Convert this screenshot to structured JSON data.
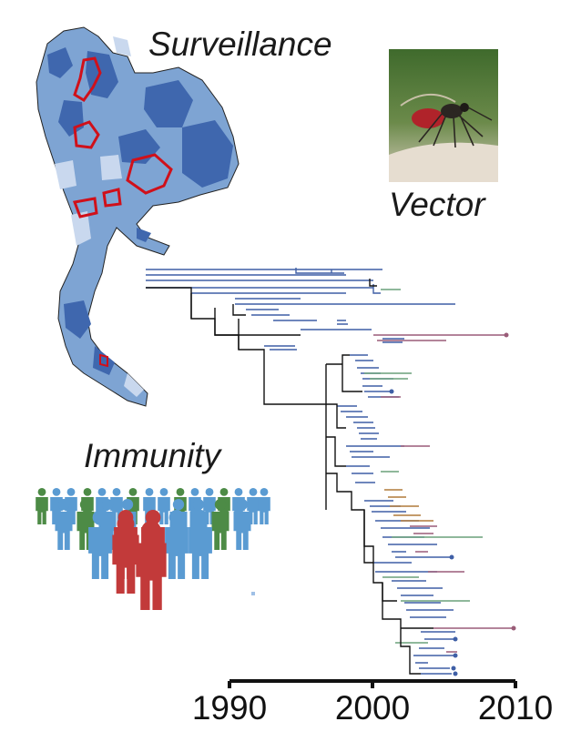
{
  "labels": {
    "surveillance": "Surveillance",
    "vector": "Vector",
    "immunity": "Immunity"
  },
  "icons": {
    "map": "thailand-map",
    "mosquito": "mosquito-photo",
    "people": "population-people-icon",
    "tree": "phylogenetic-tree"
  },
  "colors": {
    "map_dark": "#3f67ae",
    "map_mid": "#7ea4d3",
    "map_light": "#c9d8ee",
    "highlight": "#d0101a",
    "person_blue": "#5a9bd2",
    "person_green": "#4d8b46",
    "person_red": "#c23a3a",
    "branch_blue": "#3f5fa6",
    "branch_green": "#6aa07a",
    "branch_mauve": "#9a5c78",
    "branch_orange": "#b07a3a"
  },
  "chart_data": {
    "type": "phylogenetic-tree",
    "axis": {
      "ticks": [
        1990,
        2000,
        2010
      ],
      "tick_labels": [
        "1990",
        "2000",
        "2010"
      ],
      "range": [
        1990,
        2010
      ]
    }
  }
}
